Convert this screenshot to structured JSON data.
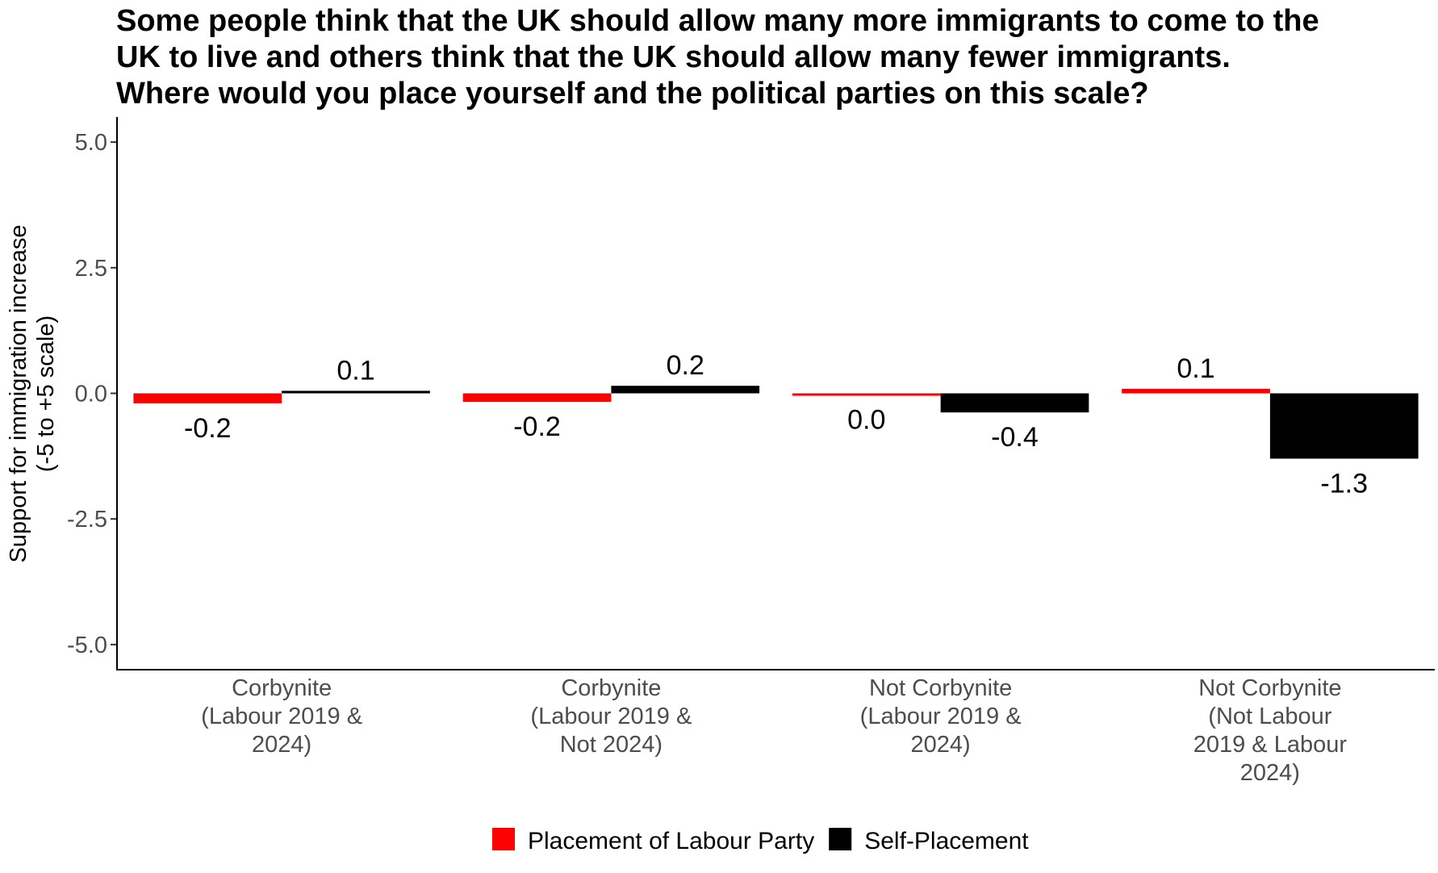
{
  "chart_data": {
    "type": "bar",
    "title_lines": [
      "Some people think that the UK should allow many more immigrants to come to the",
      "UK to live and others think that the UK should allow many fewer immigrants.",
      "Where would you place yourself and the political parties on this scale?"
    ],
    "ylabel_lines": [
      "Support for immigration increase",
      "(-5 to +5 scale)"
    ],
    "xlabel": "",
    "ylim": [
      -5.5,
      5.5
    ],
    "yticks": [
      -5.0,
      -2.5,
      0.0,
      2.5,
      5.0
    ],
    "ytick_labels": [
      "-5.0",
      "-2.5",
      "0.0",
      "2.5",
      "5.0"
    ],
    "categories": [
      [
        "Corbynite",
        "(Labour 2019 &",
        "2024)"
      ],
      [
        "Corbynite",
        "(Labour 2019 &",
        "Not 2024)"
      ],
      [
        "Not Corbynite",
        "(Labour 2019 &",
        "2024)"
      ],
      [
        "Not Corbynite",
        "(Not Labour",
        "2019 & Labour",
        "2024)"
      ]
    ],
    "series": [
      {
        "name": "Placement of Labour Party",
        "color": "#ff0000",
        "values": [
          -0.2,
          -0.17,
          -0.03,
          0.09
        ],
        "labels": [
          "-0.2",
          "-0.2",
          "0.0",
          "0.1"
        ]
      },
      {
        "name": "Self-Placement",
        "color": "#000000",
        "values": [
          0.05,
          0.15,
          -0.38,
          -1.3
        ],
        "labels": [
          "0.1",
          "0.2",
          "-0.4",
          "-1.3"
        ]
      }
    ],
    "legend_position": "bottom",
    "grid": false
  }
}
